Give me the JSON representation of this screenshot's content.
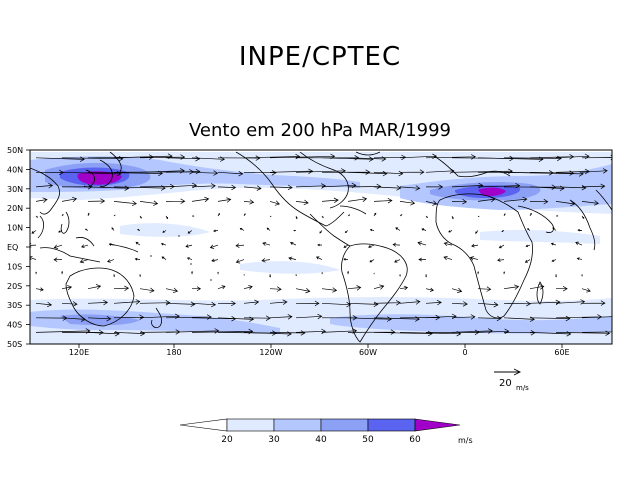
{
  "header": {
    "organization": "INPE/CPTEC"
  },
  "map": {
    "title": "Vento em 200 hPa MAR/1999",
    "lat_labels": [
      "50N",
      "40N",
      "30N",
      "20N",
      "10N",
      "EQ",
      "10S",
      "20S",
      "30S",
      "40S",
      "50S"
    ],
    "lon_labels": [
      "120E",
      "180",
      "120W",
      "60W",
      "0",
      "60E"
    ],
    "reference_vector": {
      "value": "20",
      "unit": "m/s",
      "speed": 20
    }
  },
  "legend": {
    "unit": "m/s",
    "ticks": [
      "20",
      "30",
      "40",
      "50",
      "60"
    ],
    "colors": [
      "#ffffff",
      "#e1ebff",
      "#b4c8ff",
      "#8ca0f5",
      "#5a64f0",
      "#a000c8"
    ]
  },
  "colors": {
    "speed_light": "#e1ebff",
    "speed_mid": "#b4c8ff",
    "speed_strong": "#8ca0f5",
    "speed_max": "#5a64f0",
    "speed_peak": "#a000c8"
  }
}
